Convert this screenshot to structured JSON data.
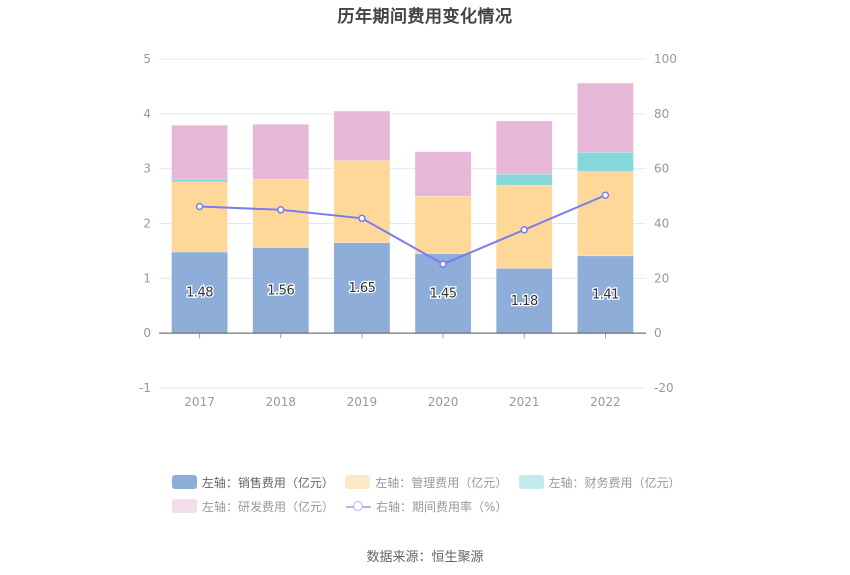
{
  "chart_data": {
    "type": "bar",
    "stacked": true,
    "title": "历年期间费用变化情况",
    "categories": [
      "2017",
      "2018",
      "2019",
      "2020",
      "2021",
      "2022"
    ],
    "series": [
      {
        "name": "左轴：销售费用（亿元）",
        "axis": "left",
        "type": "bar",
        "color": "#8eadd9",
        "values": [
          1.48,
          1.56,
          1.65,
          1.45,
          1.18,
          1.41
        ],
        "labels": [
          "1.48",
          "1.56",
          "1.65",
          "1.45",
          "1.18",
          "1.41"
        ]
      },
      {
        "name": "左轴：管理费用（亿元）",
        "axis": "left",
        "type": "bar",
        "color": "#fed898",
        "values": [
          1.28,
          1.25,
          1.5,
          1.05,
          1.52,
          1.54
        ]
      },
      {
        "name": "左轴：财务费用（亿元）",
        "axis": "left",
        "type": "bar",
        "color": "#87d6d9",
        "values": [
          0.05,
          0.0,
          0.0,
          0.0,
          0.2,
          0.35
        ]
      },
      {
        "name": "左轴：研发费用（亿元）",
        "axis": "left",
        "type": "bar",
        "color": "#e6b7d7",
        "values": [
          0.98,
          1.0,
          0.9,
          0.81,
          0.97,
          1.26
        ]
      },
      {
        "name": "右轴：期间费用率（%）",
        "axis": "right",
        "type": "line",
        "color": "#7b7cf0",
        "values": [
          46.2,
          45.0,
          41.9,
          25.2,
          37.7,
          50.3
        ]
      }
    ],
    "left_axis": {
      "ylim": [
        -1,
        5
      ],
      "ticks": [
        "-1",
        "0",
        "1",
        "2",
        "3",
        "4",
        "5"
      ]
    },
    "right_axis": {
      "ylim": [
        -20,
        100
      ],
      "ticks": [
        "-20",
        "0",
        "20",
        "40",
        "60",
        "80",
        "100"
      ]
    },
    "grid": true,
    "legend_position": "bottom",
    "legend": [
      {
        "label": "左轴：销售费用（亿元）",
        "color": "#8eadd9",
        "active": true
      },
      {
        "label": "左轴：管理费用（亿元）",
        "color": "#fde8c8",
        "active": false
      },
      {
        "label": "左轴：财务费用（亿元）",
        "color": "#c3eaec",
        "active": false
      },
      {
        "label": "左轴：研发费用（亿元）",
        "color": "#f3dceb",
        "active": false
      },
      {
        "label": "右轴：期间费用率（%）",
        "color": "#b3b3f5",
        "active": false
      }
    ]
  },
  "footer": {
    "source": "数据来源：恒生聚源"
  }
}
